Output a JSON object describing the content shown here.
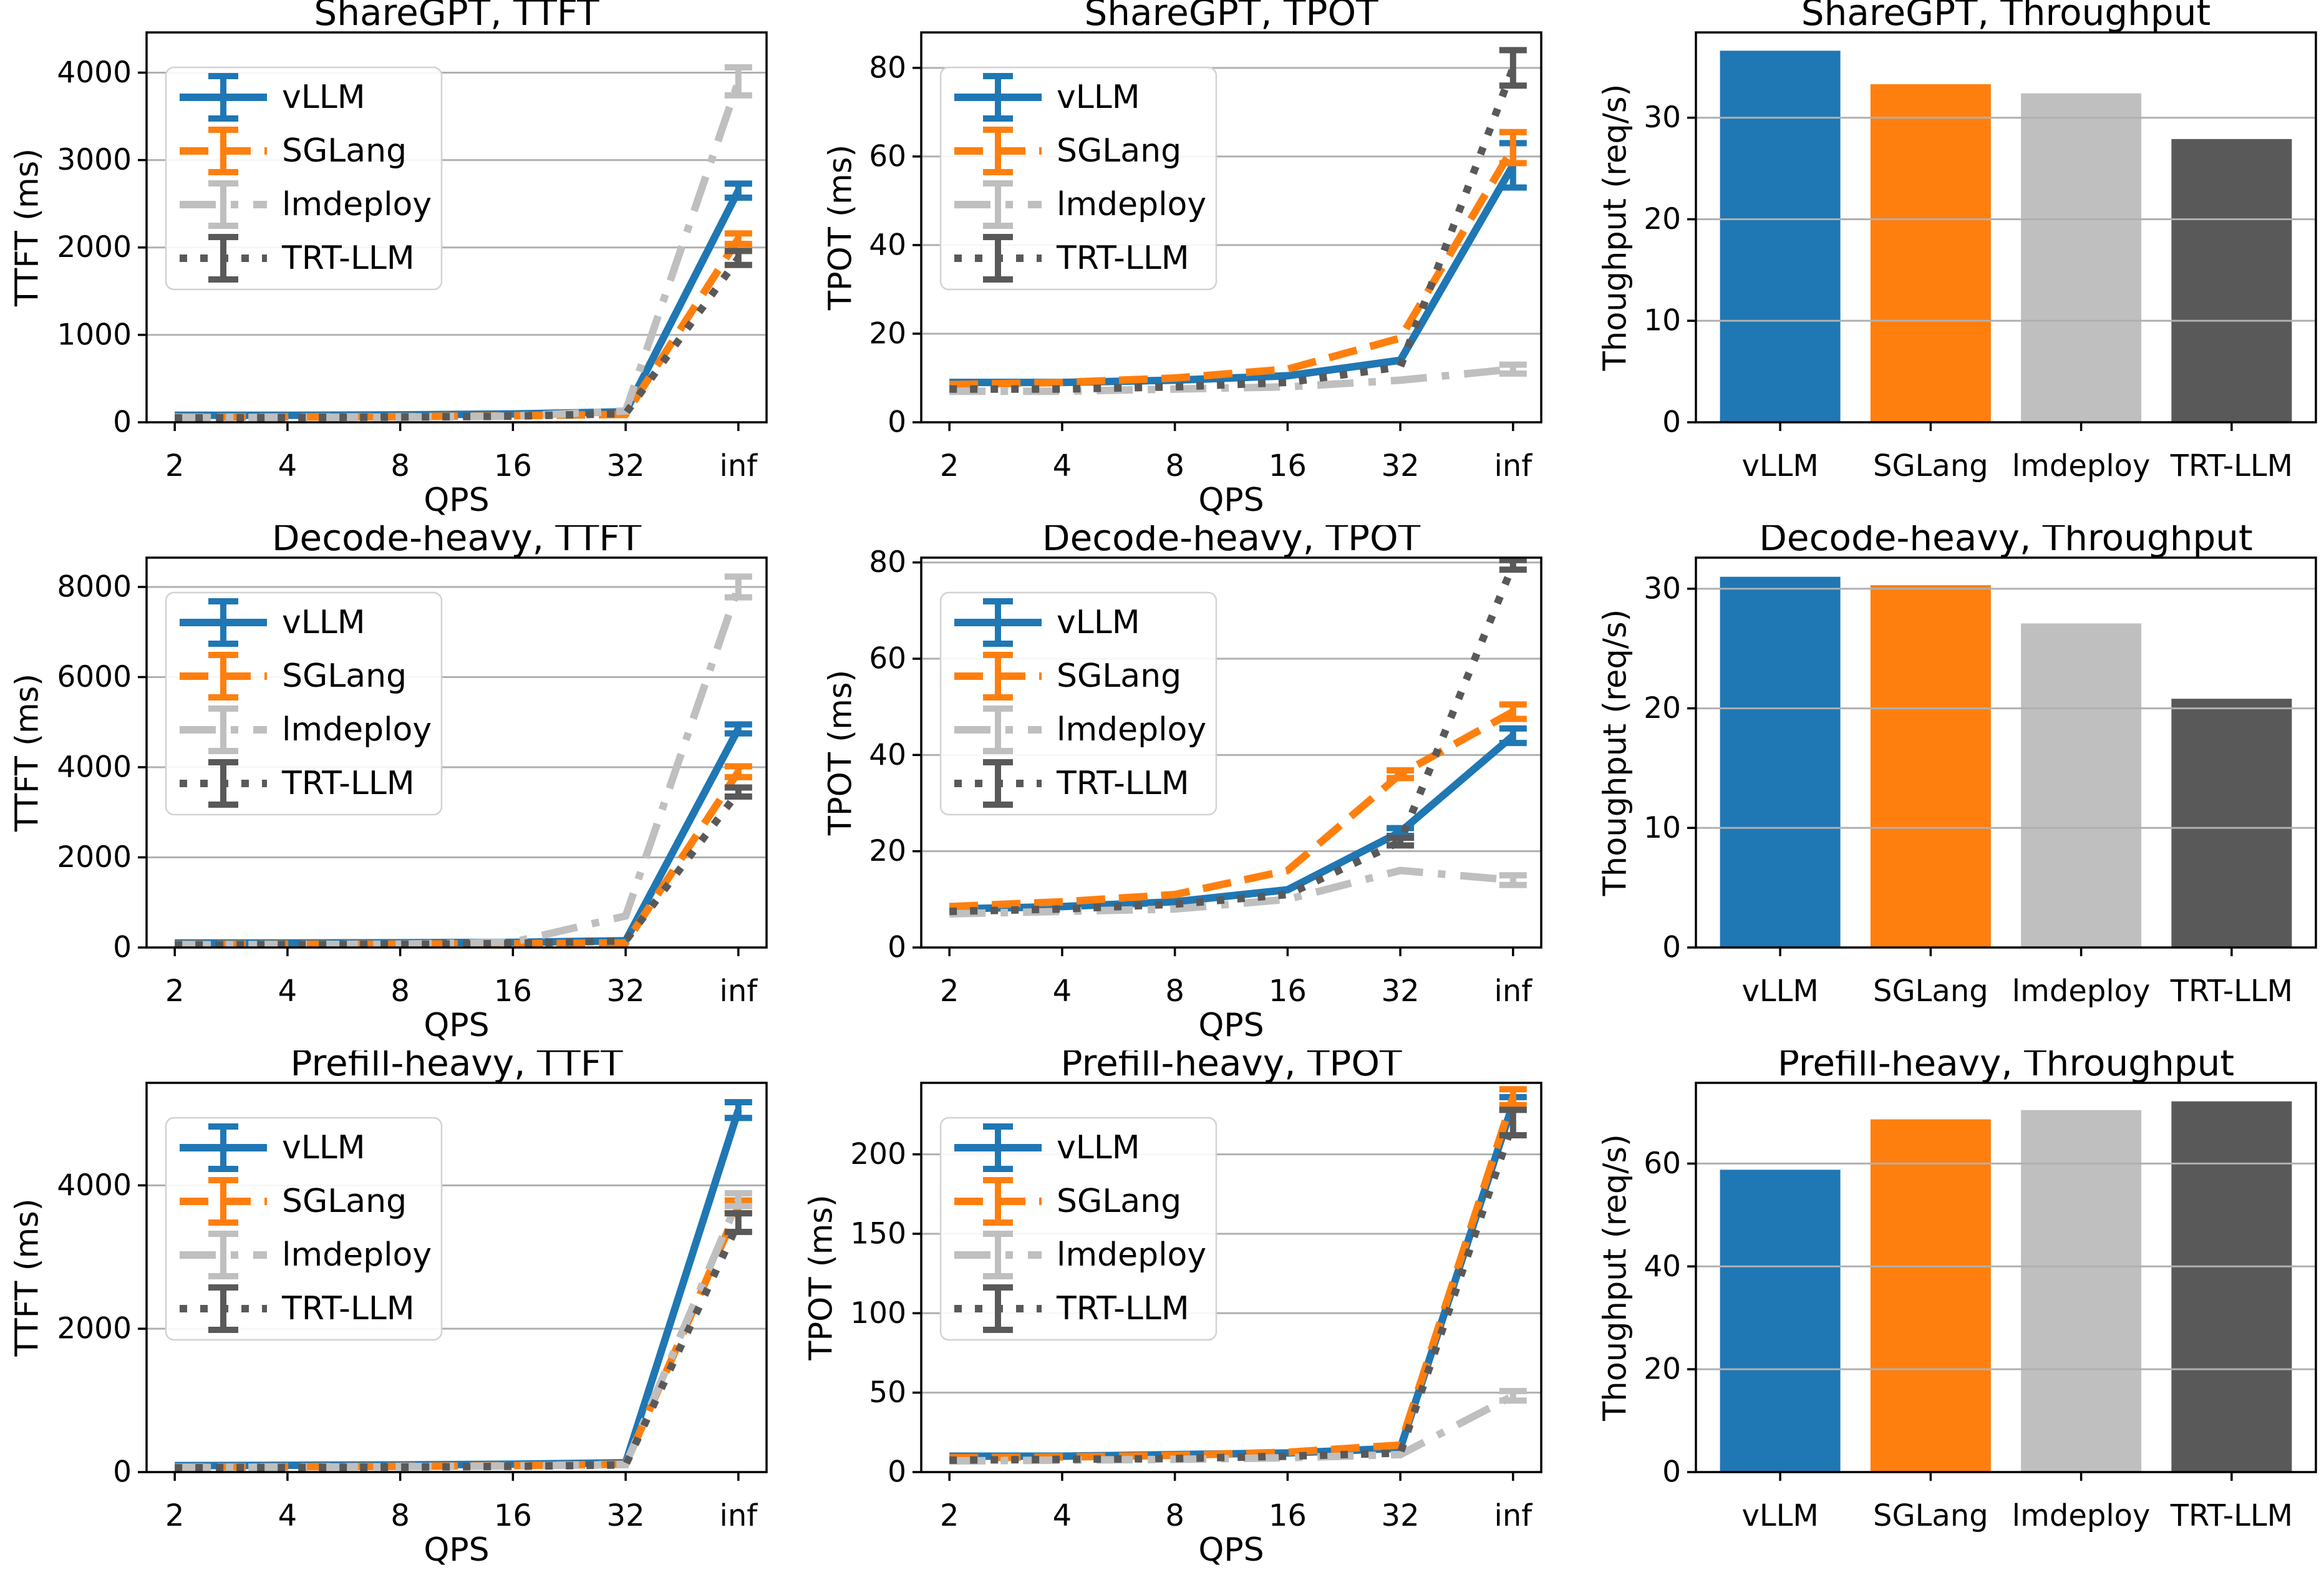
{
  "figure": {
    "description": "Benchmark comparison of LLM serving engines across three workloads",
    "workloads": [
      "ShareGPT",
      "Decode-heavy",
      "Prefill-heavy"
    ],
    "metrics": [
      "TTFT",
      "TPOT",
      "Throughput"
    ],
    "systems": [
      "vLLM",
      "SGLang",
      "lmdeploy",
      "TRT-LLM"
    ]
  },
  "palette": {
    "vllm": "#1f77b4",
    "sglang": "#ff7f0e",
    "lmdeploy": "#bfbfbf",
    "trtllm": "#595959",
    "grid": "#b0b0b0",
    "axis": "#000000",
    "legend_border": "#d2d2d2",
    "legend_fill": "rgba(255,255,255,0.9)"
  },
  "chart_data": [
    {
      "id": "sharegpt-ttft",
      "type": "line",
      "title": "ShareGPT, TTFT",
      "xlabel": "QPS",
      "ylabel": "TTFT (ms)",
      "x": [
        "2",
        "4",
        "8",
        "16",
        "32",
        "inf"
      ],
      "yticks": [
        0,
        1000,
        2000,
        3000,
        4000
      ],
      "ylim": [
        0,
        4460
      ],
      "grid": true,
      "legend": true,
      "legend_position": "upper left",
      "series": [
        {
          "name": "vLLM",
          "color": "vllm",
          "style": "solid",
          "values": [
            80,
            80,
            85,
            95,
            120,
            2650
          ],
          "err": [
            0,
            0,
            0,
            0,
            0,
            80
          ]
        },
        {
          "name": "SGLang",
          "color": "sglang",
          "style": "dashed",
          "values": [
            60,
            62,
            65,
            75,
            90,
            2100
          ],
          "err": [
            0,
            0,
            0,
            0,
            0,
            60
          ]
        },
        {
          "name": "lmdeploy",
          "color": "lmdeploy",
          "style": "dashdot",
          "values": [
            55,
            57,
            60,
            70,
            130,
            3900
          ],
          "err": [
            0,
            0,
            0,
            0,
            0,
            160
          ]
        },
        {
          "name": "TRT-LLM",
          "color": "trtllm",
          "style": "dotted",
          "values": [
            50,
            55,
            60,
            70,
            100,
            1880
          ],
          "err": [
            0,
            0,
            0,
            0,
            0,
            80
          ]
        }
      ]
    },
    {
      "id": "sharegpt-tpot",
      "type": "line",
      "title": "ShareGPT, TPOT",
      "xlabel": "QPS",
      "ylabel": "TPOT (ms)",
      "x": [
        "2",
        "4",
        "8",
        "16",
        "32",
        "inf"
      ],
      "yticks": [
        0,
        20,
        40,
        60,
        80
      ],
      "ylim": [
        0,
        88
      ],
      "grid": true,
      "legend": true,
      "legend_position": "upper left",
      "series": [
        {
          "name": "vLLM",
          "color": "vllm",
          "style": "solid",
          "values": [
            9,
            9,
            9.5,
            10.5,
            14,
            58
          ],
          "err": [
            0,
            0,
            0,
            0,
            0,
            5
          ]
        },
        {
          "name": "SGLang",
          "color": "sglang",
          "style": "dashed",
          "values": [
            8.5,
            9,
            10,
            12,
            19,
            62
          ],
          "err": [
            0,
            0,
            0,
            0,
            0,
            3.5
          ]
        },
        {
          "name": "lmdeploy",
          "color": "lmdeploy",
          "style": "dashdot",
          "values": [
            7,
            7,
            7.5,
            8,
            9.5,
            12
          ],
          "err": [
            0,
            0,
            0,
            0,
            0,
            1
          ]
        },
        {
          "name": "TRT-LLM",
          "color": "trtllm",
          "style": "dotted",
          "values": [
            7.5,
            7.5,
            8,
            9,
            12.5,
            80
          ],
          "err": [
            0,
            0,
            0,
            0,
            0,
            4
          ]
        }
      ]
    },
    {
      "id": "sharegpt-throughput",
      "type": "bar",
      "title": "ShareGPT, Throughput",
      "xlabel": "",
      "ylabel": "Thoughput (req/s)",
      "categories": [
        "vLLM",
        "SGLang",
        "lmdeploy",
        "TRT-LLM"
      ],
      "values": [
        36.6,
        33.3,
        32.4,
        27.9
      ],
      "colors": [
        "vllm",
        "sglang",
        "lmdeploy",
        "trtllm"
      ],
      "yticks": [
        0,
        10,
        20,
        30
      ],
      "ylim": [
        0,
        38.4
      ],
      "grid": true
    },
    {
      "id": "decode-heavy-ttft",
      "type": "line",
      "title": "Decode-heavy, TTFT",
      "xlabel": "QPS",
      "ylabel": "TTFT (ms)",
      "x": [
        "2",
        "4",
        "8",
        "16",
        "32",
        "inf"
      ],
      "yticks": [
        0,
        2000,
        4000,
        6000,
        8000
      ],
      "ylim": [
        0,
        8650
      ],
      "grid": true,
      "legend": true,
      "legend_position": "upper left",
      "series": [
        {
          "name": "vLLM",
          "color": "vllm",
          "style": "solid",
          "values": [
            100,
            100,
            105,
            115,
            150,
            4850
          ],
          "err": [
            0,
            0,
            0,
            0,
            0,
            100
          ]
        },
        {
          "name": "SGLang",
          "color": "sglang",
          "style": "dashed",
          "values": [
            70,
            72,
            75,
            85,
            100,
            3900
          ],
          "err": [
            0,
            0,
            0,
            0,
            0,
            120
          ]
        },
        {
          "name": "lmdeploy",
          "color": "lmdeploy",
          "style": "dashdot",
          "values": [
            60,
            65,
            75,
            120,
            700,
            8000
          ],
          "err": [
            0,
            0,
            0,
            0,
            0,
            230
          ]
        },
        {
          "name": "TRT-LLM",
          "color": "trtllm",
          "style": "dotted",
          "values": [
            60,
            65,
            70,
            90,
            150,
            3450
          ],
          "err": [
            0,
            0,
            0,
            0,
            0,
            100
          ]
        }
      ]
    },
    {
      "id": "decode-heavy-tpot",
      "type": "line",
      "title": "Decode-heavy, TPOT",
      "xlabel": "QPS",
      "ylabel": "TPOT (ms)",
      "x": [
        "2",
        "4",
        "8",
        "16",
        "32",
        "inf"
      ],
      "yticks": [
        0,
        20,
        40,
        60,
        80
      ],
      "ylim": [
        0,
        81
      ],
      "grid": true,
      "legend": true,
      "legend_position": "upper left",
      "series": [
        {
          "name": "vLLM",
          "color": "vllm",
          "style": "solid",
          "values": [
            8,
            8.5,
            9.5,
            12,
            24,
            44
          ],
          "err": [
            0,
            0,
            0,
            0,
            0.8,
            1.5
          ]
        },
        {
          "name": "SGLang",
          "color": "sglang",
          "style": "dashed",
          "values": [
            8.5,
            9.5,
            11,
            16,
            36,
            49
          ],
          "err": [
            0,
            0,
            0,
            0,
            0.8,
            1.5
          ]
        },
        {
          "name": "lmdeploy",
          "color": "lmdeploy",
          "style": "dashdot",
          "values": [
            7,
            7.5,
            8,
            10,
            16,
            14
          ],
          "err": [
            0,
            0,
            0,
            0,
            0,
            1
          ]
        },
        {
          "name": "TRT-LLM",
          "color": "trtllm",
          "style": "dotted",
          "values": [
            7.5,
            8,
            9,
            11,
            22,
            79.5
          ],
          "err": [
            0,
            0,
            0,
            0,
            0.8,
            1
          ]
        }
      ]
    },
    {
      "id": "decode-heavy-throughput",
      "type": "bar",
      "title": "Decode-heavy, Throughput",
      "xlabel": "",
      "ylabel": "Thoughput (req/s)",
      "categories": [
        "vLLM",
        "SGLang",
        "lmdeploy",
        "TRT-LLM"
      ],
      "values": [
        31.0,
        30.3,
        27.1,
        20.8
      ],
      "colors": [
        "vllm",
        "sglang",
        "lmdeploy",
        "trtllm"
      ],
      "yticks": [
        0,
        10,
        20,
        30
      ],
      "ylim": [
        0,
        32.6
      ],
      "grid": true
    },
    {
      "id": "prefill-heavy-ttft",
      "type": "line",
      "title": "Prefill-heavy, TTFT",
      "xlabel": "QPS",
      "ylabel": "TTFT (ms)",
      "x": [
        "2",
        "4",
        "8",
        "16",
        "32",
        "inf"
      ],
      "yticks": [
        0,
        2000,
        4000
      ],
      "ylim": [
        0,
        5430
      ],
      "grid": true,
      "legend": true,
      "legend_position": "upper left",
      "series": [
        {
          "name": "vLLM",
          "color": "vllm",
          "style": "solid",
          "values": [
            90,
            95,
            100,
            110,
            130,
            5050
          ],
          "err": [
            0,
            0,
            0,
            0,
            0,
            110
          ]
        },
        {
          "name": "SGLang",
          "color": "sglang",
          "style": "dashed",
          "values": [
            70,
            75,
            80,
            90,
            110,
            3700
          ],
          "err": [
            0,
            0,
            0,
            0,
            0,
            90
          ]
        },
        {
          "name": "lmdeploy",
          "color": "lmdeploy",
          "style": "dashdot",
          "values": [
            65,
            70,
            75,
            85,
            105,
            3800
          ],
          "err": [
            0,
            0,
            0,
            0,
            0,
            90
          ]
        },
        {
          "name": "TRT-LLM",
          "color": "trtllm",
          "style": "dotted",
          "values": [
            60,
            65,
            70,
            80,
            100,
            3480
          ],
          "err": [
            0,
            0,
            0,
            0,
            0,
            130
          ]
        }
      ]
    },
    {
      "id": "prefill-heavy-tpot",
      "type": "line",
      "title": "Prefill-heavy, TPOT",
      "xlabel": "QPS",
      "ylabel": "TPOT (ms)",
      "x": [
        "2",
        "4",
        "8",
        "16",
        "32",
        "inf"
      ],
      "yticks": [
        0,
        50,
        100,
        150,
        200
      ],
      "ylim": [
        0,
        245
      ],
      "grid": true,
      "legend": true,
      "legend_position": "upper left",
      "series": [
        {
          "name": "vLLM",
          "color": "vllm",
          "style": "solid",
          "values": [
            10,
            10,
            11,
            12,
            15,
            232
          ],
          "err": [
            0,
            0,
            0,
            0,
            0,
            4
          ]
        },
        {
          "name": "SGLang",
          "color": "sglang",
          "style": "dashed",
          "values": [
            9,
            9.5,
            10.5,
            12.5,
            17,
            236
          ],
          "err": [
            0,
            0,
            0,
            0,
            0,
            5
          ]
        },
        {
          "name": "lmdeploy",
          "color": "lmdeploy",
          "style": "dashdot",
          "values": [
            7,
            7.5,
            8,
            9,
            11,
            48
          ],
          "err": [
            0,
            0,
            0,
            0,
            0,
            3
          ]
        },
        {
          "name": "TRT-LLM",
          "color": "trtllm",
          "style": "dotted",
          "values": [
            7.5,
            8,
            8.5,
            10,
            12,
            220
          ],
          "err": [
            0,
            0,
            0,
            0,
            0,
            8
          ]
        }
      ]
    },
    {
      "id": "prefill-heavy-throughput",
      "type": "bar",
      "title": "Prefill-heavy, Throughput",
      "xlabel": "",
      "ylabel": "Thoughput (req/s)",
      "categories": [
        "vLLM",
        "SGLang",
        "lmdeploy",
        "TRT-LLM"
      ],
      "values": [
        58.8,
        68.6,
        70.4,
        72.1
      ],
      "colors": [
        "vllm",
        "sglang",
        "lmdeploy",
        "trtllm"
      ],
      "yticks": [
        0,
        20,
        40,
        60
      ],
      "ylim": [
        0,
        75.7
      ],
      "grid": true
    }
  ]
}
